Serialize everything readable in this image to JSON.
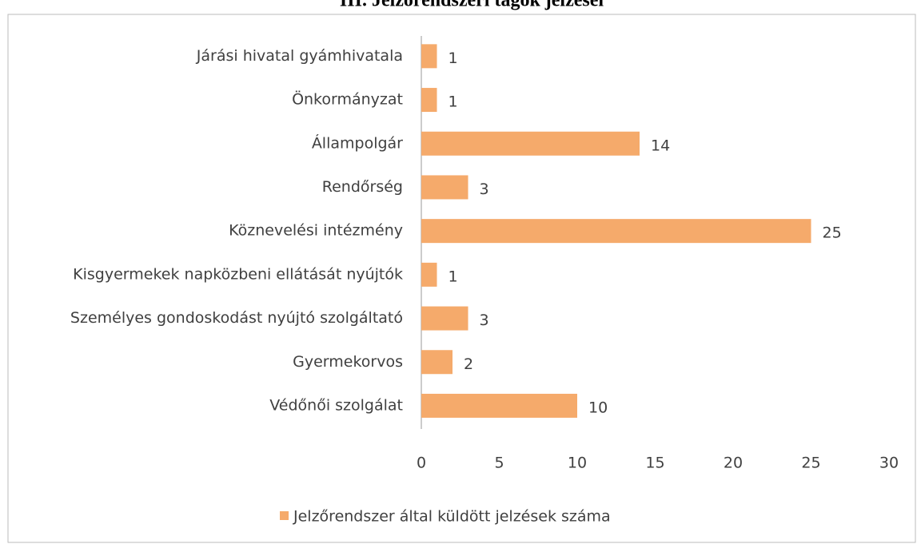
{
  "chart_data": {
    "type": "bar",
    "orientation": "horizontal",
    "title": "III.      Jelzőrendszeri tagok jelzései",
    "categories": [
      "Járási hivatal gyámhivatala",
      "Önkormányzat",
      "Állampolgár",
      "Rendőrség",
      "Köznevelési intézmény",
      "Kisgyermekek napközbeni ellátását nyújtók",
      "Személyes gondoskodást nyújtó szolgáltató",
      "Gyermekorvos",
      "Védőnői szolgálat"
    ],
    "series": [
      {
        "name": "Jelzőrendszer által küldött jelzések száma",
        "color": "#f5aa6b",
        "values": [
          1,
          1,
          14,
          3,
          25,
          1,
          3,
          2,
          10
        ]
      }
    ],
    "xlim": [
      0,
      30
    ],
    "xticks": [
      0,
      5,
      10,
      15,
      20,
      25,
      30
    ],
    "grid": false,
    "legend": "bottom"
  }
}
